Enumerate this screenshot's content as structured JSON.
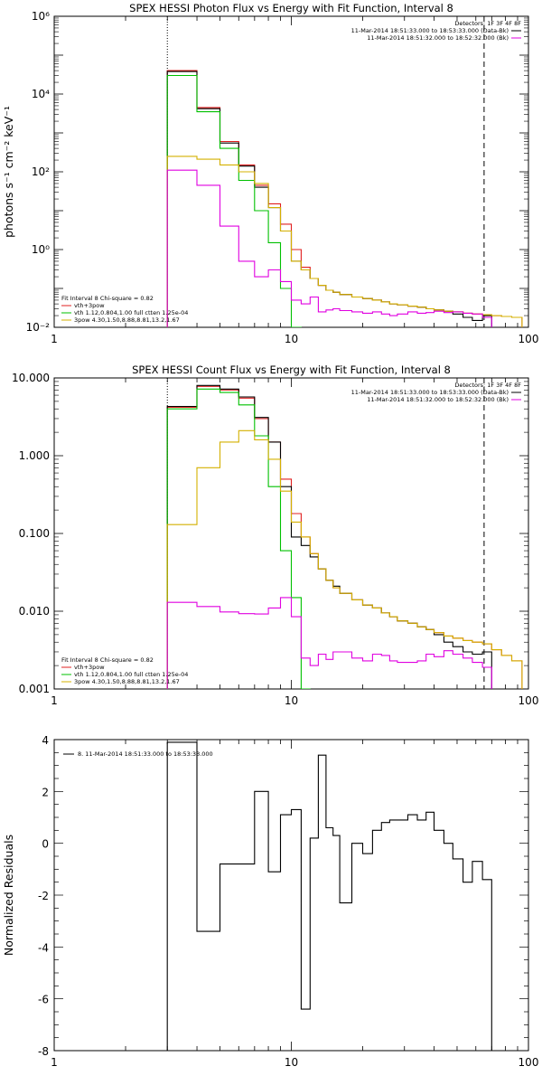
{
  "chart_data": [
    {
      "type": "line",
      "panel": "photon",
      "title": "SPEX HESSI Photon Flux vs Energy with Fit Function, Interval 8",
      "ylabel": "photons s⁻¹ cm⁻² keV⁻¹",
      "xlabel": "",
      "xscale": "log",
      "yscale": "log",
      "xlim": [
        1,
        100
      ],
      "ylim": [
        0.01,
        1000000
      ],
      "xticklabels": [
        "1",
        "10",
        "100"
      ],
      "yticklabels": [
        "10⁻²",
        "10⁰",
        "10²",
        "10⁴",
        "10⁶"
      ],
      "vlines": [
        {
          "x": 3,
          "style": "dotted"
        },
        {
          "x": 65,
          "style": "dashed"
        }
      ],
      "legend_top": [
        {
          "text": "Detectors: 1F 3F 4F 8F",
          "color": ""
        },
        {
          "text": "11-Mar-2014 18:51:33.000 to 18:53:33.000 (Data-Bk)",
          "color": "#000000"
        },
        {
          "text": "11-Mar-2014 18:51:32.000 to 18:52:32.000 (Bk)",
          "color": "#e000e0"
        }
      ],
      "legend_bottom": [
        {
          "text": "Fit Interval  8    Chi-square = 0.82",
          "color": ""
        },
        {
          "text": "vth+3pow",
          "color": "#e02020"
        },
        {
          "text": "vth 1.12,0.804,1.00  full ctten 1.25e-04",
          "color": "#00c000"
        },
        {
          "text": "3pow 4.30,1.50,8.88,8.81,13.2,1.67",
          "color": "#d4b000"
        }
      ],
      "edges": [
        3.0,
        4.0,
        5.0,
        6.0,
        7.0,
        8.0,
        9.0,
        10.0,
        11.0,
        12.0,
        13.0,
        14.0,
        15.0,
        16.0,
        18.0,
        20.0,
        22.0,
        24.0,
        26.0,
        28.0,
        31.0,
        34.0,
        37.0,
        40.0,
        44.0,
        48.0,
        53.0,
        58.0,
        64.0,
        70.0,
        77.0,
        85.0,
        94.0
      ],
      "series": [
        {
          "name": "vth+3pow",
          "color": "#e02020",
          "values": [
            40000,
            4500,
            600,
            150,
            45,
            15,
            4.5,
            1.0,
            0.35,
            0.18,
            0.12,
            0.09,
            0.08,
            0.07,
            0.06,
            0.055,
            0.05,
            0.045,
            0.04,
            0.038,
            0.035,
            0.033,
            0.03,
            0.028,
            0.026,
            0.025,
            0.023,
            0.022,
            0.021,
            0.02,
            0.019,
            0.018
          ]
        },
        {
          "values": [
            38000,
            4200,
            550,
            140,
            40,
            12,
            3.0,
            0.5,
            0.3,
            0.18,
            0.12,
            0.09,
            0.08,
            0.07,
            0.06,
            0.055,
            0.05,
            0.045,
            0.04,
            0.038,
            0.035,
            0.033,
            0.03,
            0.028,
            0.026,
            0.022,
            0.018,
            0.015,
            0.02
          ],
          "color": "#000000"
        },
        {
          "name": "vth",
          "color": "#00c000",
          "values": [
            30000,
            3500,
            400,
            60,
            10,
            1.5,
            0.1,
            0.01
          ]
        },
        {
          "name": "3pow",
          "color": "#d4b000",
          "values": [
            250,
            210,
            150,
            100,
            50,
            12,
            3.0,
            0.5,
            0.3,
            0.18,
            0.12,
            0.09,
            0.08,
            0.07,
            0.06,
            0.055,
            0.05,
            0.045,
            0.04,
            0.038,
            0.035,
            0.033,
            0.03,
            0.028,
            0.026,
            0.025,
            0.023,
            0.022,
            0.021,
            0.02,
            0.019,
            0.018
          ]
        },
        {
          "values": [
            110,
            45,
            4.0,
            0.5,
            0.2,
            0.3,
            0.15,
            0.05,
            0.04,
            0.06,
            0.025,
            0.028,
            0.03,
            0.027,
            0.025,
            0.023,
            0.025,
            0.022,
            0.02,
            0.022,
            0.025,
            0.023,
            0.024,
            0.026,
            0.024,
            0.025,
            0.023,
            0.022,
            0.018
          ],
          "color": "#e000e0"
        }
      ]
    },
    {
      "type": "line",
      "panel": "count",
      "title": "SPEX HESSI Count Flux vs Energy with Fit Function, Interval 8",
      "xlabel": "",
      "ylabel": "",
      "xscale": "log",
      "yscale": "log",
      "xlim": [
        1,
        100
      ],
      "ylim": [
        0.001,
        10
      ],
      "xticklabels": [
        "1",
        "10",
        "100"
      ],
      "yticklabels": [
        "0.001",
        "0.010",
        "0.100",
        "1.000",
        "10.000"
      ],
      "vlines": [
        {
          "x": 3,
          "style": "dotted"
        },
        {
          "x": 65,
          "style": "dashed"
        }
      ],
      "legend_top": [
        {
          "text": "Detectors: 1F 3F 4F 8F",
          "color": ""
        },
        {
          "text": "11-Mar-2014 18:51:33.000 to 18:53:33.000 (Data-Bk)",
          "color": "#000000"
        },
        {
          "text": "11-Mar-2014 18:51:32.000 to 18:52:32.000 (Bk)",
          "color": "#e000e0"
        }
      ],
      "legend_bottom": [
        {
          "text": "Fit Interval  8    Chi-square = 0.82",
          "color": ""
        },
        {
          "text": "vth+3pow",
          "color": "#e02020"
        },
        {
          "text": "vth 1.12,0.804,1.00  full ctten 1.25e-04",
          "color": "#00c000"
        },
        {
          "text": "3pow 4.30,1.50,8.88,8.81,13.2,1.67",
          "color": "#d4b000"
        }
      ],
      "edges": [
        3.0,
        4.0,
        5.0,
        6.0,
        7.0,
        8.0,
        9.0,
        10.0,
        11.0,
        12.0,
        13.0,
        14.0,
        15.0,
        16.0,
        18.0,
        20.0,
        22.0,
        24.0,
        26.0,
        28.0,
        31.0,
        34.0,
        37.0,
        40.0,
        44.0,
        48.0,
        53.0,
        58.0,
        64.0,
        70.0,
        77.0,
        85.0,
        94.0
      ],
      "series": [
        {
          "name": "vth+3pow",
          "color": "#e02020",
          "values": [
            4.2,
            7.8,
            7.0,
            5.5,
            3.0,
            1.5,
            0.5,
            0.18,
            0.09,
            0.055,
            0.035,
            0.025,
            0.02,
            0.017,
            0.014,
            0.012,
            0.011,
            0.0095,
            0.0085,
            0.0075,
            0.007,
            0.0063,
            0.0058,
            0.0053,
            0.0048,
            0.0045,
            0.0042,
            0.004,
            0.0038,
            0.0032,
            0.0027,
            0.0023
          ]
        },
        {
          "values": [
            4.3,
            8.0,
            7.2,
            5.7,
            3.1,
            1.5,
            0.4,
            0.09,
            0.07,
            0.05,
            0.035,
            0.025,
            0.021,
            0.017,
            0.014,
            0.012,
            0.011,
            0.0095,
            0.0085,
            0.0075,
            0.007,
            0.0063,
            0.0058,
            0.005,
            0.004,
            0.0035,
            0.003,
            0.0028,
            0.003
          ],
          "color": "#000000"
        },
        {
          "name": "vth",
          "color": "#00c000",
          "values": [
            4.0,
            7.2,
            6.5,
            4.5,
            1.8,
            0.4,
            0.06,
            0.015,
            0.001
          ]
        },
        {
          "name": "3pow",
          "color": "#d4b000",
          "values": [
            0.13,
            0.7,
            1.5,
            2.1,
            1.6,
            0.9,
            0.35,
            0.14,
            0.09,
            0.055,
            0.035,
            0.025,
            0.02,
            0.017,
            0.014,
            0.012,
            0.011,
            0.0095,
            0.0085,
            0.0075,
            0.007,
            0.0063,
            0.0058,
            0.0053,
            0.0048,
            0.0045,
            0.0042,
            0.004,
            0.0038,
            0.0032,
            0.0027,
            0.0023
          ]
        },
        {
          "values": [
            0.013,
            0.0115,
            0.0098,
            0.0093,
            0.0092,
            0.011,
            0.015,
            0.0085,
            0.0025,
            0.002,
            0.0028,
            0.0024,
            0.003,
            0.003,
            0.0025,
            0.0023,
            0.0028,
            0.0027,
            0.0023,
            0.0022,
            0.0022,
            0.0023,
            0.0028,
            0.0026,
            0.0031,
            0.0028,
            0.0025,
            0.0022,
            0.0019
          ],
          "color": "#e000e0"
        }
      ]
    },
    {
      "type": "line",
      "panel": "residuals",
      "title": "",
      "ylabel": "Normalized Residuals",
      "xlabel": "",
      "xscale": "log",
      "yscale": "linear",
      "xlim": [
        1,
        100
      ],
      "ylim": [
        -8,
        4
      ],
      "xticklabels": [
        "1",
        "10",
        "100"
      ],
      "yticks": [
        -8,
        -6,
        -4,
        -2,
        0,
        2,
        4
      ],
      "yticklabels": [
        "-8",
        "-6",
        "-4",
        "-2",
        "0",
        "2",
        "4"
      ],
      "legend": "8. 11-Mar-2014 18:51:33.000 to 18:53:33.000",
      "edges": [
        3.0,
        4.0,
        5.0,
        6.0,
        7.0,
        8.0,
        9.0,
        10.0,
        11.0,
        12.0,
        13.0,
        14.0,
        15.0,
        16.0,
        18.0,
        20.0,
        22.0,
        24.0,
        26.0,
        28.0,
        31.0,
        34.0,
        37.0,
        40.0,
        44.0,
        48.0,
        53.0,
        58.0,
        64.0,
        70.0
      ],
      "series": [
        {
          "values": [
            3.9,
            -3.4,
            -0.8,
            -0.8,
            2.0,
            -1.1,
            1.1,
            1.3,
            -6.4,
            0.2,
            3.4,
            0.6,
            0.3,
            -2.3,
            0.0,
            -0.4,
            0.5,
            0.8,
            0.9,
            0.9,
            1.1,
            0.9,
            1.2,
            0.5,
            0.0,
            -0.6,
            -1.5,
            -0.7,
            -1.4
          ],
          "color": "#000000"
        }
      ]
    }
  ]
}
